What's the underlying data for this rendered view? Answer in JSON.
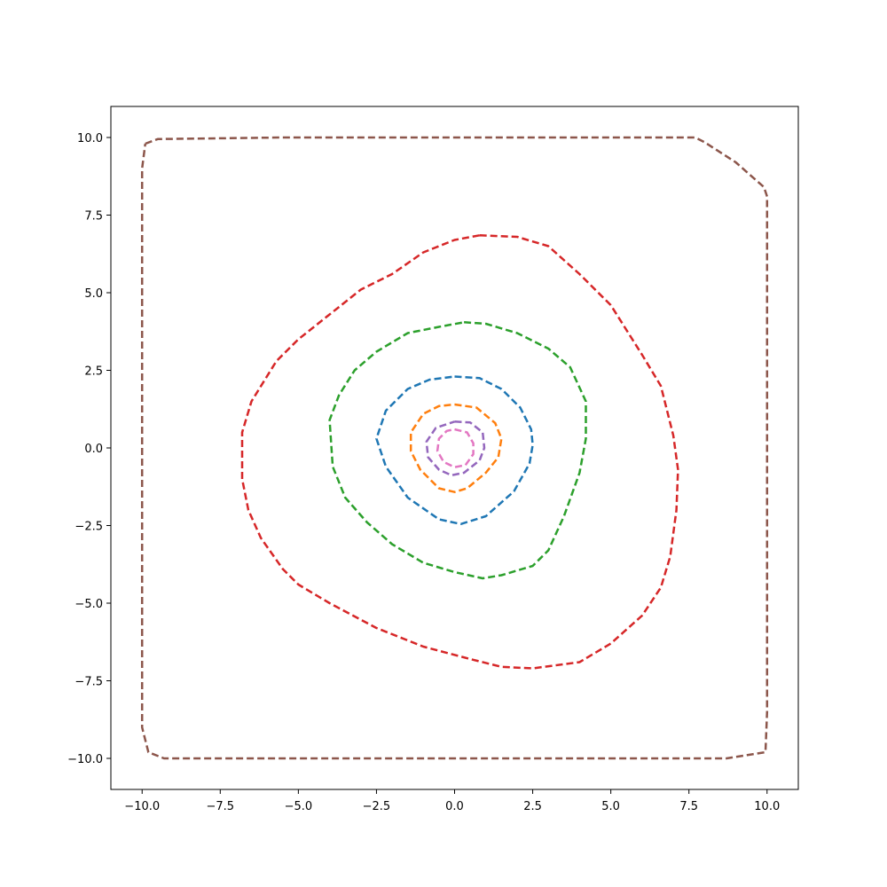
{
  "chart_data": {
    "type": "line",
    "title": "",
    "xlabel": "",
    "ylabel": "",
    "xlim": [
      -11,
      11
    ],
    "ylim": [
      -11,
      11
    ],
    "grid": false,
    "line_style": "dashed",
    "x_ticks": [
      {
        "value": -10,
        "label": "−10.0"
      },
      {
        "value": -7.5,
        "label": "−7.5"
      },
      {
        "value": -5,
        "label": "−5.0"
      },
      {
        "value": -2.5,
        "label": "−2.5"
      },
      {
        "value": 0,
        "label": "0.0"
      },
      {
        "value": 2.5,
        "label": "2.5"
      },
      {
        "value": 5,
        "label": "5.0"
      },
      {
        "value": 7.5,
        "label": "7.5"
      },
      {
        "value": 10,
        "label": "10.0"
      }
    ],
    "y_ticks": [
      {
        "value": 10,
        "label": "10.0"
      },
      {
        "value": 7.5,
        "label": "7.5"
      },
      {
        "value": 5,
        "label": "5.0"
      },
      {
        "value": 2.5,
        "label": "2.5"
      },
      {
        "value": 0,
        "label": "0.0"
      },
      {
        "value": -2.5,
        "label": "−2.5"
      },
      {
        "value": -5,
        "label": "−5.0"
      },
      {
        "value": -7.5,
        "label": "−7.5"
      },
      {
        "value": -10,
        "label": "−10.0"
      }
    ],
    "series": [
      {
        "color": "#8c564b",
        "points": [
          [
            -9.9,
            9.8
          ],
          [
            -9.5,
            9.95
          ],
          [
            -5.5,
            10.0
          ],
          [
            0,
            10.0
          ],
          [
            5,
            10.0
          ],
          [
            7.7,
            10.0
          ],
          [
            8.0,
            9.85
          ],
          [
            9.0,
            9.2
          ],
          [
            9.9,
            8.4
          ],
          [
            10.0,
            8.1
          ],
          [
            10.0,
            -8.5
          ],
          [
            9.95,
            -9.8
          ],
          [
            8.7,
            -10.0
          ],
          [
            -9.3,
            -10.0
          ],
          [
            -9.8,
            -9.8
          ],
          [
            -10.0,
            -9.0
          ],
          [
            -10.0,
            9.0
          ],
          [
            -9.9,
            9.8
          ]
        ]
      },
      {
        "color": "#d62728",
        "points": [
          [
            0.8,
            6.85
          ],
          [
            2.0,
            6.8
          ],
          [
            3.0,
            6.5
          ],
          [
            4.0,
            5.6
          ],
          [
            5.0,
            4.6
          ],
          [
            6.0,
            3.0
          ],
          [
            6.6,
            2.0
          ],
          [
            7.0,
            0.4
          ],
          [
            7.15,
            -0.7
          ],
          [
            7.1,
            -2.0
          ],
          [
            6.9,
            -3.5
          ],
          [
            6.6,
            -4.5
          ],
          [
            6.0,
            -5.4
          ],
          [
            5.0,
            -6.3
          ],
          [
            4.0,
            -6.9
          ],
          [
            2.5,
            -7.1
          ],
          [
            1.5,
            -7.05
          ],
          [
            0.5,
            -6.8
          ],
          [
            -1.0,
            -6.4
          ],
          [
            -2.5,
            -5.8
          ],
          [
            -4.0,
            -5.0
          ],
          [
            -5.0,
            -4.4
          ],
          [
            -5.5,
            -3.9
          ],
          [
            -6.2,
            -2.9
          ],
          [
            -6.6,
            -2.0
          ],
          [
            -6.8,
            -1.0
          ],
          [
            -6.8,
            0.5
          ],
          [
            -6.5,
            1.5
          ],
          [
            -5.7,
            2.8
          ],
          [
            -5.0,
            3.5
          ],
          [
            -4.0,
            4.3
          ],
          [
            -3.0,
            5.1
          ],
          [
            -2.0,
            5.6
          ],
          [
            -1.0,
            6.3
          ],
          [
            0.0,
            6.7
          ],
          [
            0.8,
            6.85
          ]
        ]
      },
      {
        "color": "#2ca02c",
        "points": [
          [
            0.3,
            4.05
          ],
          [
            1.0,
            4.0
          ],
          [
            2.0,
            3.7
          ],
          [
            3.0,
            3.2
          ],
          [
            3.7,
            2.6
          ],
          [
            4.2,
            1.5
          ],
          [
            4.2,
            0.3
          ],
          [
            4.0,
            -0.8
          ],
          [
            3.5,
            -2.2
          ],
          [
            3.0,
            -3.3
          ],
          [
            2.5,
            -3.8
          ],
          [
            1.5,
            -4.1
          ],
          [
            0.9,
            -4.2
          ],
          [
            0.0,
            -4.0
          ],
          [
            -1.0,
            -3.7
          ],
          [
            -2.0,
            -3.1
          ],
          [
            -2.8,
            -2.4
          ],
          [
            -3.5,
            -1.6
          ],
          [
            -3.9,
            -0.6
          ],
          [
            -4.0,
            0.9
          ],
          [
            -3.7,
            1.7
          ],
          [
            -3.2,
            2.5
          ],
          [
            -2.5,
            3.1
          ],
          [
            -1.5,
            3.7
          ],
          [
            -0.5,
            3.9
          ],
          [
            0.3,
            4.05
          ]
        ]
      },
      {
        "color": "#1f77b4",
        "points": [
          [
            0.0,
            2.3
          ],
          [
            0.8,
            2.25
          ],
          [
            1.5,
            1.9
          ],
          [
            2.1,
            1.3
          ],
          [
            2.45,
            0.6
          ],
          [
            2.5,
            0.1
          ],
          [
            2.4,
            -0.5
          ],
          [
            1.9,
            -1.4
          ],
          [
            1.0,
            -2.2
          ],
          [
            0.2,
            -2.45
          ],
          [
            -0.5,
            -2.3
          ],
          [
            -1.5,
            -1.6
          ],
          [
            -2.2,
            -0.6
          ],
          [
            -2.5,
            0.3
          ],
          [
            -2.2,
            1.2
          ],
          [
            -1.5,
            1.9
          ],
          [
            -0.8,
            2.2
          ],
          [
            0.0,
            2.3
          ]
        ]
      },
      {
        "color": "#ff7f0e",
        "points": [
          [
            0.0,
            1.4
          ],
          [
            0.7,
            1.3
          ],
          [
            1.3,
            0.8
          ],
          [
            1.5,
            0.3
          ],
          [
            1.4,
            -0.3
          ],
          [
            1.0,
            -0.8
          ],
          [
            0.4,
            -1.3
          ],
          [
            0.0,
            -1.42
          ],
          [
            -0.5,
            -1.3
          ],
          [
            -1.1,
            -0.7
          ],
          [
            -1.4,
            -0.1
          ],
          [
            -1.4,
            0.5
          ],
          [
            -1.0,
            1.1
          ],
          [
            -0.5,
            1.35
          ],
          [
            0.0,
            1.4
          ]
        ]
      },
      {
        "color": "#9467bd",
        "points": [
          [
            0.0,
            0.85
          ],
          [
            0.5,
            0.82
          ],
          [
            0.9,
            0.5
          ],
          [
            0.95,
            0.0
          ],
          [
            0.8,
            -0.4
          ],
          [
            0.3,
            -0.8
          ],
          [
            -0.1,
            -0.88
          ],
          [
            -0.5,
            -0.7
          ],
          [
            -0.85,
            -0.3
          ],
          [
            -0.9,
            0.2
          ],
          [
            -0.6,
            0.65
          ],
          [
            0.0,
            0.85
          ]
        ]
      },
      {
        "color": "#e377c2",
        "points": [
          [
            0.0,
            0.6
          ],
          [
            0.4,
            0.5
          ],
          [
            0.6,
            0.15
          ],
          [
            0.6,
            -0.2
          ],
          [
            0.35,
            -0.55
          ],
          [
            0.0,
            -0.62
          ],
          [
            -0.35,
            -0.45
          ],
          [
            -0.55,
            -0.1
          ],
          [
            -0.5,
            0.3
          ],
          [
            -0.25,
            0.55
          ],
          [
            0.0,
            0.6
          ]
        ]
      }
    ]
  }
}
